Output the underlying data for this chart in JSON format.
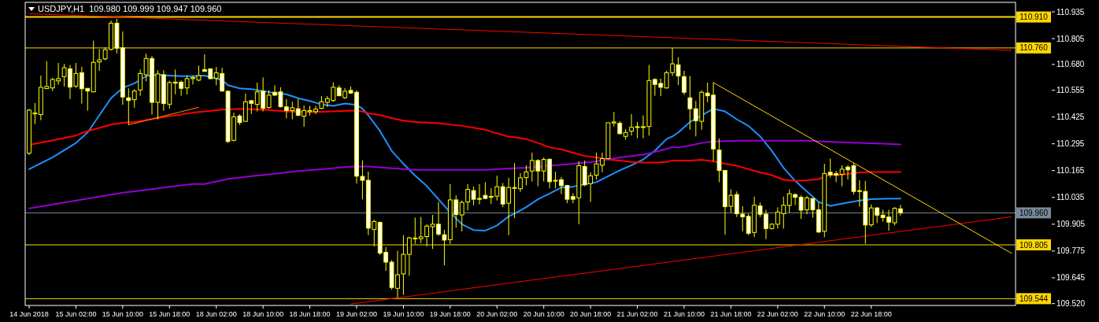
{
  "chart_data": {
    "type": "candlestick",
    "title": "USDJPY,H1  109.980 109.999 109.947 109.960",
    "color": "#ffff00",
    "categories": [
      "14 Jun 2018",
      null,
      null,
      null,
      null,
      null,
      null,
      null,
      "15 Jun 02:00",
      null,
      null,
      null,
      null,
      null,
      null,
      null,
      "15 Jun 10:00",
      null,
      null,
      null,
      null,
      null,
      null,
      null,
      "15 Jun 18:00",
      null,
      null,
      null,
      null,
      null,
      null,
      null,
      "18 Jun 02:00",
      null,
      null,
      null,
      null,
      null,
      null,
      null,
      "18 Jun 10:00",
      null,
      null,
      null,
      null,
      null,
      null,
      null,
      "18 Jun 18:00",
      null,
      null,
      null,
      null,
      null,
      null,
      null,
      "19 Jun 02:00",
      null,
      null,
      null,
      null,
      null,
      null,
      null,
      "19 Jun 10:00",
      null,
      null,
      null,
      null,
      null,
      null,
      null,
      "19 Jun 18:00",
      null,
      null,
      null,
      null,
      null,
      null,
      null,
      "20 Jun 02:00",
      null,
      null,
      null,
      null,
      null,
      null,
      null,
      "20 Jun 10:00",
      null,
      null,
      null,
      null,
      null,
      null,
      null,
      "20 Jun 18:00",
      null,
      null,
      null,
      null,
      null,
      null,
      null,
      "21 Jun 02:00",
      null,
      null,
      null,
      null,
      null,
      null,
      null,
      "21 Jun 10:00",
      null,
      null,
      null,
      null,
      null,
      null,
      null,
      "21 Jun 18:00",
      null,
      null,
      null,
      null,
      null,
      null,
      null,
      "22 Jun 02:00",
      null,
      null,
      null,
      null,
      null,
      null,
      null,
      "22 Jun 10:00",
      null,
      null,
      null,
      null,
      null,
      null,
      null,
      "22 Jun 18:00",
      null,
      null,
      null,
      null,
      null,
      null,
      null,
      null,
      null,
      null,
      null,
      null,
      null,
      null,
      null,
      null,
      null,
      null,
      null,
      null,
      null,
      null,
      null,
      null
    ],
    "ohlc": [
      [
        110.25,
        110.465,
        110.24,
        110.458
      ],
      [
        110.44,
        110.493,
        110.391,
        110.445
      ],
      [
        110.437,
        110.626,
        110.41,
        110.569
      ],
      [
        110.563,
        110.696,
        110.56,
        110.573
      ],
      [
        110.566,
        110.615,
        110.551,
        110.607
      ],
      [
        110.6,
        110.687,
        110.582,
        110.611
      ],
      [
        110.621,
        110.683,
        110.573,
        110.664
      ],
      [
        110.659,
        110.677,
        110.512,
        110.57
      ],
      [
        110.575,
        110.687,
        110.566,
        110.636
      ],
      [
        110.64,
        110.668,
        110.49,
        110.562
      ],
      [
        110.564,
        110.564,
        110.456,
        110.551
      ],
      [
        110.547,
        110.795,
        110.545,
        110.69
      ],
      [
        110.692,
        110.754,
        110.649,
        110.702
      ],
      [
        110.707,
        110.763,
        110.7,
        110.752
      ],
      [
        110.753,
        110.893,
        110.747,
        110.88
      ],
      [
        110.88,
        110.901,
        110.734,
        110.759
      ],
      [
        110.761,
        110.84,
        110.484,
        110.522
      ],
      [
        110.518,
        110.564,
        110.387,
        110.505
      ],
      [
        110.509,
        110.56,
        110.47,
        110.551
      ],
      [
        110.556,
        110.655,
        110.528,
        110.636
      ],
      [
        110.63,
        110.732,
        110.598,
        110.709
      ],
      [
        110.709,
        110.721,
        110.437,
        110.496
      ],
      [
        110.496,
        110.652,
        110.414,
        110.634
      ],
      [
        110.63,
        110.652,
        110.456,
        110.49
      ],
      [
        110.487,
        110.601,
        110.465,
        110.592
      ],
      [
        110.594,
        110.655,
        110.535,
        110.589
      ],
      [
        110.594,
        110.602,
        110.528,
        110.564
      ],
      [
        110.566,
        110.627,
        110.535,
        110.611
      ],
      [
        110.611,
        110.624,
        110.583,
        110.616
      ],
      [
        110.604,
        110.674,
        110.598,
        110.626
      ],
      [
        110.655,
        110.729,
        110.646,
        110.646
      ],
      [
        110.659,
        110.659,
        110.608,
        110.611
      ],
      [
        110.613,
        110.668,
        110.579,
        110.639
      ],
      [
        110.636,
        110.664,
        110.547,
        110.551
      ],
      [
        110.55,
        110.554,
        110.299,
        110.306
      ],
      [
        110.312,
        110.446,
        110.306,
        110.426
      ],
      [
        110.43,
        110.439,
        110.386,
        110.398
      ],
      [
        110.404,
        110.538,
        110.404,
        110.499
      ],
      [
        110.504,
        110.509,
        110.439,
        110.491
      ],
      [
        110.486,
        110.592,
        110.452,
        110.547
      ],
      [
        110.551,
        110.617,
        110.452,
        110.468
      ],
      [
        110.471,
        110.554,
        110.465,
        110.531
      ],
      [
        110.545,
        110.579,
        110.526,
        110.531
      ],
      [
        110.547,
        110.569,
        110.471,
        110.475
      ],
      [
        110.474,
        110.512,
        110.418,
        110.456
      ],
      [
        110.456,
        110.499,
        110.414,
        110.47
      ],
      [
        110.465,
        110.512,
        110.429,
        110.433
      ],
      [
        110.429,
        110.481,
        110.378,
        110.456
      ],
      [
        110.451,
        110.48,
        110.432,
        110.456
      ],
      [
        110.451,
        110.479,
        110.439,
        110.463
      ],
      [
        110.467,
        110.527,
        110.463,
        110.499
      ],
      [
        110.496,
        110.527,
        110.473,
        110.514
      ],
      [
        110.505,
        110.592,
        110.499,
        110.569
      ],
      [
        110.566,
        110.579,
        110.526,
        110.528
      ],
      [
        110.519,
        110.566,
        110.512,
        110.55
      ],
      [
        110.554,
        110.573,
        110.537,
        110.541
      ],
      [
        110.545,
        110.554,
        110.102,
        110.138
      ],
      [
        110.137,
        110.214,
        110.026,
        110.118
      ],
      [
        110.118,
        110.16,
        109.852,
        109.886
      ],
      [
        109.88,
        109.927,
        109.797,
        109.918
      ],
      [
        109.914,
        109.918,
        109.756,
        109.765
      ],
      [
        109.769,
        109.795,
        109.679,
        109.721
      ],
      [
        109.721,
        109.731,
        109.588,
        109.598
      ],
      [
        109.594,
        109.776,
        109.549,
        109.66
      ],
      [
        109.664,
        109.852,
        109.562,
        109.759
      ],
      [
        109.759,
        109.844,
        109.655,
        109.839
      ],
      [
        109.834,
        109.937,
        109.81,
        109.838
      ],
      [
        109.835,
        109.94,
        109.814,
        109.844
      ],
      [
        109.845,
        109.905,
        109.797,
        109.896
      ],
      [
        109.893,
        109.95,
        109.785,
        109.905
      ],
      [
        109.905,
        110.013,
        109.848,
        109.857
      ],
      [
        109.854,
        109.878,
        109.706,
        109.828
      ],
      [
        109.83,
        110.1,
        109.81,
        110.023
      ],
      [
        110.023,
        110.045,
        109.889,
        109.952
      ],
      [
        109.95,
        110.02,
        109.87,
        110.011
      ],
      [
        110.013,
        110.1,
        109.972,
        110.074
      ],
      [
        110.068,
        110.087,
        109.997,
        110.026
      ],
      [
        110.03,
        110.1,
        110.001,
        110.026
      ],
      [
        110.045,
        110.109,
        110.026,
        110.03
      ],
      [
        110.036,
        110.08,
        110.004,
        110.04
      ],
      [
        110.041,
        110.14,
        110.02,
        110.087
      ],
      [
        110.087,
        110.105,
        109.988,
        110.003
      ],
      [
        110.007,
        110.13,
        109.852,
        110.083
      ],
      [
        110.079,
        110.201,
        109.934,
        110.083
      ],
      [
        110.077,
        110.153,
        110.062,
        110.13
      ],
      [
        110.131,
        110.191,
        110.093,
        110.159
      ],
      [
        110.163,
        110.252,
        110.112,
        110.214
      ],
      [
        110.214,
        110.22,
        110.089,
        110.163
      ],
      [
        110.163,
        110.229,
        110.112,
        110.219
      ],
      [
        110.22,
        110.223,
        110.079,
        110.111
      ],
      [
        110.114,
        110.16,
        110.079,
        110.118
      ],
      [
        110.121,
        110.134,
        110.051,
        110.092
      ],
      [
        110.093,
        110.096,
        110.007,
        110.026
      ],
      [
        110.039,
        110.055,
        110.007,
        110.026
      ],
      [
        110.033,
        110.21,
        109.905,
        110.189
      ],
      [
        110.185,
        110.214,
        110.089,
        110.096
      ],
      [
        110.102,
        110.156,
        110.013,
        110.14
      ],
      [
        110.143,
        110.252,
        110.121,
        110.198
      ],
      [
        110.191,
        110.252,
        110.157,
        110.223
      ],
      [
        110.223,
        110.397,
        110.219,
        110.397
      ],
      [
        110.396,
        110.449,
        110.379,
        110.401
      ],
      [
        110.395,
        110.405,
        110.341,
        110.344
      ],
      [
        110.331,
        110.367,
        110.315,
        110.35
      ],
      [
        110.356,
        110.439,
        110.335,
        110.375
      ],
      [
        110.376,
        110.401,
        110.322,
        110.378
      ],
      [
        110.376,
        110.433,
        110.322,
        110.378
      ],
      [
        110.379,
        110.677,
        110.335,
        110.602
      ],
      [
        110.607,
        110.613,
        110.528,
        110.583
      ],
      [
        110.588,
        110.611,
        110.526,
        110.569
      ],
      [
        110.566,
        110.649,
        110.562,
        110.64
      ],
      [
        110.64,
        110.76,
        110.624,
        110.683
      ],
      [
        110.678,
        110.715,
        110.58,
        110.624
      ],
      [
        110.621,
        110.649,
        110.532,
        110.545
      ],
      [
        110.518,
        110.624,
        110.363,
        110.465
      ],
      [
        110.465,
        110.503,
        110.331,
        110.407
      ],
      [
        110.404,
        110.554,
        110.363,
        110.545
      ],
      [
        110.541,
        110.592,
        110.496,
        110.528
      ],
      [
        110.531,
        110.592,
        110.21,
        110.27
      ],
      [
        110.265,
        110.321,
        110.109,
        110.166
      ],
      [
        110.166,
        110.166,
        109.854,
        109.99
      ],
      [
        109.992,
        110.074,
        109.962,
        110.045
      ],
      [
        110.049,
        110.064,
        109.94,
        109.956
      ],
      [
        109.954,
        109.992,
        109.871,
        109.941
      ],
      [
        109.943,
        109.956,
        109.852,
        109.861
      ],
      [
        109.865,
        110.039,
        109.842,
        109.997
      ],
      [
        109.994,
        110.01,
        109.94,
        109.953
      ],
      [
        109.954,
        109.975,
        109.833,
        109.884
      ],
      [
        109.884,
        109.91,
        109.88,
        109.905
      ],
      [
        109.905,
        109.987,
        109.884,
        109.964
      ],
      [
        109.956,
        110.039,
        109.883,
        109.997
      ],
      [
        109.996,
        110.074,
        109.96,
        110.053
      ],
      [
        110.049,
        110.055,
        109.998,
        110.036
      ],
      [
        110.036,
        110.045,
        109.931,
        109.973
      ],
      [
        109.975,
        110.042,
        109.953,
        110.033
      ],
      [
        110.03,
        110.03,
        109.937,
        109.975
      ],
      [
        109.975,
        110.011,
        109.863,
        109.867
      ],
      [
        109.871,
        110.198,
        109.842,
        110.151
      ],
      [
        110.157,
        110.223,
        110.131,
        110.144
      ],
      [
        110.151,
        110.163,
        110.109,
        110.143
      ],
      [
        110.147,
        110.191,
        110.089,
        110.172
      ],
      [
        110.182,
        110.191,
        110.122,
        110.169
      ],
      [
        110.189,
        110.201,
        110.049,
        110.064
      ],
      [
        110.068,
        110.118,
        109.99,
        110.064
      ],
      [
        110.064,
        110.115,
        109.81,
        109.901
      ],
      [
        109.902,
        110.001,
        109.893,
        109.984
      ],
      [
        109.984,
        109.988,
        109.911,
        109.949
      ],
      [
        109.949,
        109.975,
        109.918,
        109.937
      ],
      [
        109.94,
        109.975,
        109.873,
        109.915
      ],
      [
        109.912,
        109.988,
        109.899,
        109.982
      ],
      [
        109.98,
        109.999,
        109.947,
        109.96
      ],
      null,
      null,
      null,
      null,
      null,
      null,
      null,
      null,
      null,
      null,
      null,
      null,
      null,
      null,
      null,
      null,
      null,
      null,
      null
    ],
    "series": [
      {
        "type": "line",
        "color": "#1e90ff",
        "values": [
          110.172,
          null,
          null,
          null,
          110.229,
          null,
          null,
          null,
          110.299,
          null,
          110.35,
          null,
          110.433,
          null,
          110.516,
          null,
          110.566,
          null,
          110.588,
          null,
          110.623,
          null,
          110.63,
          null,
          110.626,
          null,
          110.623,
          null,
          110.623,
          null,
          110.626,
          null,
          null,
          110.604,
          110.579,
          null,
          110.564,
          null,
          110.56,
          null,
          110.551,
          null,
          110.541,
          null,
          110.535,
          null,
          110.516,
          null,
          110.503,
          null,
          110.486,
          null,
          110.479,
          null,
          110.49,
          null,
          110.484,
          110.465,
          110.433,
          null,
          110.357,
          null,
          110.261,
          null,
          110.198,
          null,
          110.141,
          null,
          110.09,
          null,
          110.026,
          null,
          109.962,
          null,
          109.905,
          null,
          109.877,
          null,
          109.874,
          null,
          109.899,
          null,
          109.943,
          109.956,
          null,
          109.988,
          null,
          110.026,
          null,
          110.054,
          null,
          110.083,
          null,
          110.087,
          null,
          110.099,
          null,
          110.109,
          null,
          110.138,
          null,
          110.166,
          null,
          110.191,
          null,
          110.219,
          null,
          110.261,
          null,
          110.318,
          110.331,
          110.35,
          null,
          110.401,
          null,
          110.433,
          null,
          110.465,
          null,
          110.452,
          null,
          110.414,
          null,
          110.382,
          null,
          110.331,
          null,
          110.261,
          null,
          110.179,
          null,
          110.115,
          null,
          110.064,
          null,
          110.013,
          null,
          109.994,
          null,
          null,
          110.01,
          null,
          110.02,
          null,
          110.026,
          null,
          110.028,
          null,
          null,
          110.029,
          null,
          null,
          null,
          null,
          null,
          null,
          null,
          null,
          null,
          null,
          null,
          null,
          null,
          null,
          null,
          null,
          null,
          null,
          null
        ]
      },
      {
        "type": "line",
        "color": "#ff0000",
        "values": [
          110.29,
          null,
          null,
          null,
          110.312,
          null,
          null,
          null,
          110.335,
          null,
          110.357,
          null,
          110.372,
          null,
          110.388,
          null,
          110.397,
          null,
          110.401,
          null,
          110.41,
          null,
          110.42,
          null,
          110.429,
          null,
          110.437,
          null,
          110.446,
          null,
          110.452,
          null,
          null,
          110.461,
          null,
          null,
          110.465,
          null,
          null,
          null,
          110.461,
          null,
          null,
          null,
          110.452,
          null,
          null,
          null,
          110.448,
          null,
          null,
          null,
          110.452,
          null,
          null,
          110.456,
          null,
          110.452,
          110.443,
          null,
          110.435,
          null,
          110.42,
          null,
          110.407,
          null,
          110.401,
          null,
          null,
          null,
          110.395,
          null,
          null,
          null,
          110.382,
          null,
          null,
          null,
          110.363,
          null,
          null,
          null,
          110.329,
          110.327,
          null,
          110.318,
          null,
          110.299,
          null,
          110.278,
          null,
          110.268,
          null,
          110.252,
          null,
          110.236,
          null,
          110.229,
          null,
          110.219,
          null,
          110.214,
          null,
          110.207,
          null,
          110.204,
          null,
          110.204,
          null,
          110.207,
          110.214,
          null,
          null,
          110.214,
          null,
          110.217,
          null,
          110.21,
          null,
          110.198,
          null,
          110.189,
          null,
          110.172,
          null,
          110.156,
          null,
          110.143,
          null,
          110.121,
          null,
          110.115,
          null,
          110.118,
          null,
          110.124,
          null,
          110.147,
          110.143,
          null,
          110.149,
          null,
          110.156,
          null,
          110.158,
          null,
          null,
          null,
          null,
          110.158,
          null,
          null,
          null,
          null,
          null,
          null,
          null,
          null,
          null,
          null,
          null,
          null,
          null,
          null,
          null,
          null,
          null,
          null,
          null
        ]
      },
      {
        "type": "line",
        "color": "#9400d3",
        "values": [
          109.982,
          null,
          null,
          null,
          110.001,
          null,
          null,
          null,
          110.02,
          null,
          null,
          null,
          110.039,
          null,
          null,
          null,
          110.058,
          null,
          null,
          null,
          110.071,
          null,
          null,
          null,
          110.087,
          null,
          null,
          null,
          110.1,
          null,
          110.1,
          null,
          null,
          null,
          110.125,
          null,
          null,
          null,
          110.138,
          null,
          null,
          null,
          110.15,
          null,
          null,
          null,
          110.163,
          null,
          null,
          null,
          110.172,
          null,
          null,
          null,
          110.182,
          null,
          110.185,
          null,
          110.185,
          null,
          null,
          null,
          110.176,
          null,
          null,
          null,
          110.169,
          null,
          null,
          null,
          110.169,
          null,
          null,
          null,
          110.169,
          null,
          null,
          null,
          110.169,
          null,
          null,
          null,
          110.175,
          null,
          null,
          110.179,
          null,
          null,
          null,
          110.189,
          null,
          null,
          null,
          110.198,
          null,
          null,
          null,
          110.21,
          null,
          null,
          null,
          110.229,
          null,
          null,
          null,
          110.242,
          null,
          null,
          null,
          110.27,
          110.28,
          110.277,
          null,
          110.287,
          null,
          110.299,
          null,
          110.306,
          null,
          null,
          null,
          110.31,
          null,
          null,
          null,
          110.31,
          null,
          null,
          null,
          110.31,
          null,
          null,
          null,
          110.31,
          null,
          null,
          110.306,
          null,
          110.303,
          null,
          null,
          null,
          110.299,
          null,
          null,
          null,
          110.296,
          null,
          null,
          110.292,
          null,
          null,
          null,
          null,
          null,
          null,
          null,
          null,
          null,
          null,
          null,
          null,
          null,
          null,
          null,
          null,
          null,
          null,
          null
        ]
      },
      {
        "type": "line",
        "color": "#ff0000",
        "values": [
          110.926,
          null,
          null,
          null,
          null,
          null,
          null,
          null,
          null,
          null,
          null,
          null,
          null,
          null,
          null,
          null,
          null,
          null,
          null,
          null,
          null,
          null,
          null,
          null,
          null,
          null,
          null,
          null,
          null,
          null,
          null,
          null,
          null,
          null,
          null,
          null,
          null,
          null,
          null,
          null,
          null,
          null,
          null,
          null,
          null,
          null,
          null,
          null,
          null,
          null,
          null,
          null,
          null,
          null,
          null,
          null,
          null,
          null,
          null,
          null,
          null,
          null,
          null,
          null,
          null,
          null,
          null,
          null,
          null,
          null,
          null,
          null,
          null,
          null,
          null,
          null,
          null,
          null,
          null,
          null,
          null,
          null,
          null,
          null,
          null,
          null,
          null,
          null,
          null,
          null,
          null,
          null,
          null,
          null,
          null,
          null,
          null,
          null,
          null,
          null,
          null,
          null,
          null,
          null,
          null,
          null,
          null,
          null,
          null,
          null,
          null,
          null,
          null,
          null,
          null,
          null,
          null,
          null,
          null,
          null,
          null,
          null,
          null,
          null,
          null,
          null,
          null,
          null,
          null,
          null,
          null,
          null,
          null,
          null,
          null,
          null,
          null,
          null,
          null,
          null,
          null,
          null,
          null,
          null,
          null,
          null,
          null,
          null,
          null,
          null,
          null,
          null,
          null,
          null,
          null,
          null,
          null,
          null,
          null,
          null,
          null,
          null,
          null,
          null,
          null,
          null,
          null,
          null,
          110.748
        ]
      },
      {
        "type": "line",
        "color": "#ff0000",
        "values": [
          null,
          null,
          null,
          null,
          null,
          null,
          null,
          null,
          null,
          null,
          null,
          null,
          null,
          null,
          null,
          null,
          null,
          null,
          null,
          null,
          null,
          null,
          null,
          null,
          null,
          null,
          null,
          null,
          null,
          null,
          null,
          null,
          null,
          null,
          null,
          null,
          null,
          null,
          null,
          null,
          null,
          null,
          null,
          null,
          null,
          null,
          null,
          null,
          null,
          null,
          null,
          null,
          null,
          null,
          null,
          109.518,
          null,
          null,
          null,
          null,
          null,
          null,
          null,
          null,
          null,
          null,
          null,
          null,
          null,
          null,
          null,
          null,
          null,
          null,
          null,
          null,
          null,
          null,
          null,
          null,
          null,
          null,
          null,
          null,
          null,
          null,
          null,
          null,
          null,
          null,
          null,
          null,
          null,
          null,
          null,
          null,
          null,
          null,
          null,
          null,
          null,
          null,
          null,
          null,
          null,
          null,
          null,
          null,
          null,
          null,
          null,
          null,
          null,
          null,
          null,
          null,
          null,
          null,
          null,
          null,
          null,
          null,
          null,
          null,
          null,
          null,
          null,
          null,
          null,
          null,
          null,
          null,
          null,
          null,
          null,
          null,
          null,
          null,
          null,
          null,
          null,
          null,
          null,
          null,
          null,
          null,
          null,
          null,
          null,
          null,
          null,
          null,
          null,
          null,
          null,
          null,
          null,
          null,
          null,
          null,
          null,
          null,
          null,
          null,
          null,
          null,
          null,
          null,
          109.941
        ]
      },
      {
        "type": "line",
        "color": "#ffd700",
        "values": [
          null,
          null,
          null,
          null,
          null,
          null,
          null,
          null,
          null,
          null,
          null,
          null,
          null,
          null,
          null,
          null,
          null,
          null,
          null,
          null,
          null,
          null,
          null,
          null,
          null,
          null,
          null,
          null,
          null,
          null,
          null,
          null,
          null,
          null,
          null,
          null,
          null,
          null,
          null,
          null,
          null,
          null,
          null,
          null,
          null,
          null,
          null,
          null,
          null,
          null,
          null,
          null,
          null,
          null,
          null,
          null,
          null,
          null,
          null,
          null,
          null,
          null,
          null,
          null,
          null,
          null,
          null,
          null,
          null,
          null,
          null,
          null,
          null,
          null,
          null,
          null,
          null,
          null,
          null,
          null,
          null,
          null,
          null,
          null,
          null,
          null,
          null,
          null,
          null,
          null,
          null,
          null,
          null,
          null,
          null,
          null,
          null,
          null,
          null,
          null,
          null,
          null,
          null,
          null,
          null,
          null,
          null,
          null,
          null,
          null,
          null,
          null,
          null,
          null,
          null,
          null,
          null,
          110.592,
          null,
          null,
          null,
          null,
          null,
          null,
          null,
          null,
          null,
          null,
          null,
          null,
          null,
          null,
          null,
          null,
          null,
          null,
          null,
          null,
          null,
          null,
          null,
          null,
          null,
          null,
          null,
          null,
          null,
          null,
          null,
          null,
          null,
          null,
          null,
          null,
          null,
          null,
          null,
          null,
          null,
          null,
          null,
          null,
          null,
          null,
          null,
          null,
          null,
          null,
          109.764
        ]
      },
      {
        "type": "line",
        "color": "#ff8c00",
        "values": [
          null,
          null,
          null,
          null,
          null,
          null,
          null,
          null,
          null,
          null,
          null,
          null,
          null,
          null,
          null,
          null,
          null,
          110.387,
          null,
          null,
          null,
          null,
          null,
          null,
          null,
          null,
          null,
          null,
          null,
          110.472,
          null,
          null,
          null,
          null,
          null,
          null,
          null,
          null,
          null,
          null,
          null,
          null,
          null,
          null,
          null,
          null,
          null,
          null,
          null,
          null,
          null,
          null,
          null,
          null,
          null,
          null,
          null,
          null,
          null,
          null,
          null,
          null,
          null,
          null,
          null,
          null,
          null,
          null,
          null,
          null,
          null,
          null,
          null,
          null,
          null,
          null,
          null,
          null,
          null,
          null,
          null,
          null,
          null,
          null,
          null,
          null,
          null,
          null,
          null,
          null,
          null,
          null,
          null,
          null,
          null,
          null,
          null,
          null,
          null,
          null,
          null,
          null,
          null,
          null,
          null,
          null,
          null,
          null,
          null,
          null,
          null,
          null,
          null,
          null,
          null,
          null,
          null,
          null,
          null,
          null,
          null,
          null,
          null,
          null,
          null,
          null,
          null,
          null,
          null,
          null,
          null,
          null,
          null,
          null,
          null,
          null,
          null,
          null,
          null,
          null,
          null,
          null,
          null,
          null,
          null,
          null,
          null,
          null,
          null,
          null,
          null,
          null,
          null,
          null,
          null,
          null,
          null,
          null,
          null,
          null,
          null,
          null,
          null,
          null,
          null,
          null,
          null,
          null,
          null
        ]
      }
    ],
    "ref_lines": [
      {
        "axis": "y",
        "value": 110.91,
        "label": "110.910",
        "color": "#ffd700"
      },
      {
        "axis": "y",
        "value": 110.76,
        "label": "110.760",
        "color": "#ffd700"
      },
      {
        "axis": "y",
        "value": 109.96,
        "label": "109.960",
        "color": "#778899"
      },
      {
        "axis": "y",
        "value": 109.805,
        "label": "109.805",
        "color": "#ffd700"
      },
      {
        "axis": "y",
        "value": 109.544,
        "label": "109.544",
        "color": "#ffd700"
      }
    ],
    "ylim": [
      109.511,
      110.981
    ],
    "yticks": [
      110.935,
      110.805,
      {
        "value": 110.68,
        "label": "110.680"
      },
      110.555,
      110.425,
      110.295,
      110.165,
      110.035,
      109.905,
      109.775,
      109.645,
      {
        "value": 109.52,
        "label": "109.520"
      }
    ]
  }
}
